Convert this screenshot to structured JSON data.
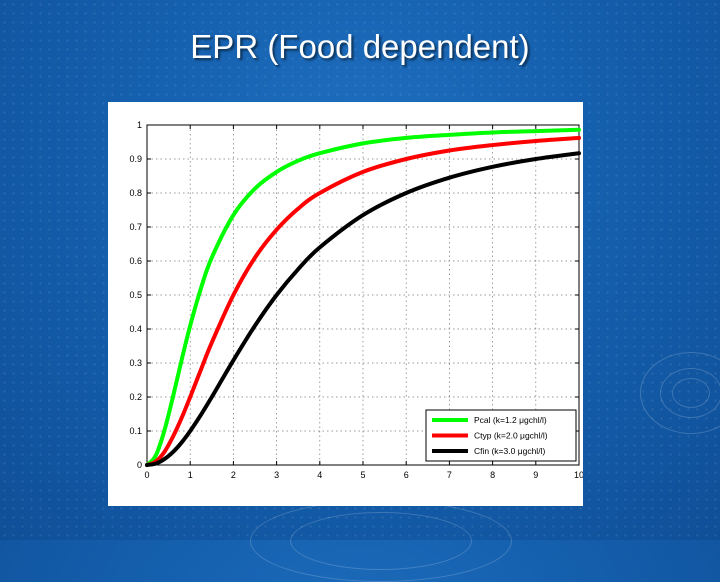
{
  "slide": {
    "title": "EPR (Food dependent)"
  },
  "colors": {
    "background": "#1560ae",
    "pcal": "#00ff00",
    "ctyp": "#ff0000",
    "cfin": "#000000"
  },
  "chart_data": {
    "type": "line",
    "title": "",
    "xlabel": "",
    "ylabel": "",
    "xlim": [
      0,
      10
    ],
    "ylim": [
      0,
      1
    ],
    "xticks": [
      "0",
      "1",
      "2",
      "3",
      "4",
      "5",
      "6",
      "7",
      "8",
      "9",
      "10"
    ],
    "yticks": [
      "0",
      "0.1",
      "0.2",
      "0.3",
      "0.4",
      "0.5",
      "0.6",
      "0.7",
      "0.8",
      "0.9",
      "1"
    ],
    "grid": true,
    "legend_position": "bottom-right",
    "series": [
      {
        "name": "Pcal (k=1.2 μgchl/l)",
        "color": "#00ff00",
        "x": [
          0,
          0.2,
          0.4,
          0.6,
          0.8,
          1.0,
          1.25,
          1.5,
          2.0,
          2.5,
          3.0,
          3.5,
          4.0,
          5.0,
          6.0,
          7.0,
          8.0,
          9.0,
          10.0
        ],
        "y": [
          0,
          0.027,
          0.1,
          0.2,
          0.308,
          0.41,
          0.52,
          0.61,
          0.735,
          0.813,
          0.862,
          0.895,
          0.917,
          0.946,
          0.962,
          0.971,
          0.978,
          0.982,
          0.986
        ]
      },
      {
        "name": "Ctyp (k=2.0 μgchl/l)",
        "color": "#ff0000",
        "x": [
          0,
          0.2,
          0.4,
          0.6,
          0.8,
          1.0,
          1.25,
          1.5,
          2.0,
          2.5,
          3.0,
          3.5,
          4.0,
          5.0,
          6.0,
          7.0,
          8.0,
          9.0,
          10.0
        ],
        "y": [
          0,
          0.01,
          0.038,
          0.083,
          0.138,
          0.2,
          0.281,
          0.36,
          0.5,
          0.61,
          0.692,
          0.754,
          0.8,
          0.862,
          0.9,
          0.925,
          0.941,
          0.953,
          0.962
        ]
      },
      {
        "name": "Cfin (k=3.0 μgchl/l)",
        "color": "#000000",
        "x": [
          0,
          0.2,
          0.4,
          0.6,
          0.8,
          1.0,
          1.25,
          1.5,
          2.0,
          2.5,
          3.0,
          3.5,
          4.0,
          5.0,
          6.0,
          7.0,
          8.0,
          9.0,
          10.0
        ],
        "y": [
          0,
          0.004,
          0.017,
          0.038,
          0.066,
          0.1,
          0.148,
          0.2,
          0.308,
          0.41,
          0.5,
          0.576,
          0.64,
          0.735,
          0.8,
          0.845,
          0.877,
          0.9,
          0.917
        ]
      }
    ]
  }
}
